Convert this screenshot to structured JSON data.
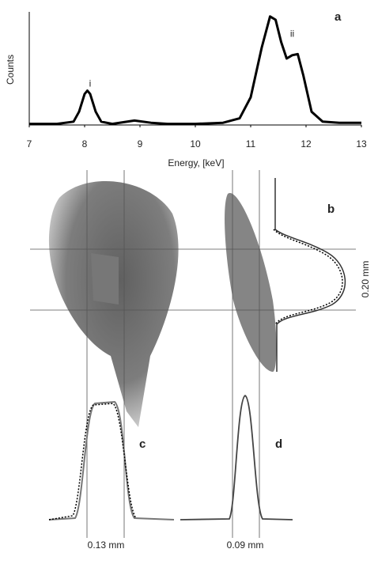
{
  "chart_data": {
    "type": "line",
    "ylabel": "Counts",
    "xlabel": "Energy, [keV]",
    "x": [
      7.0,
      7.5,
      7.8,
      7.9,
      8.0,
      8.05,
      8.1,
      8.2,
      8.3,
      8.5,
      8.9,
      9.2,
      9.5,
      10.0,
      10.5,
      10.8,
      11.0,
      11.2,
      11.35,
      11.45,
      11.55,
      11.65,
      11.75,
      11.85,
      11.95,
      12.1,
      12.3,
      12.6,
      13.0
    ],
    "series": [
      {
        "color": "#000000",
        "values": [
          1,
          1,
          3,
          12,
          28,
          31,
          28,
          12,
          3,
          1,
          4,
          2,
          1,
          1,
          2,
          6,
          25,
          70,
          98,
          95,
          75,
          60,
          63,
          64,
          45,
          12,
          3,
          2,
          2
        ]
      }
    ],
    "xlim": [
      7,
      13
    ],
    "ylim": [
      0,
      100
    ],
    "xticks": [
      7,
      8,
      9,
      10,
      11,
      12,
      13
    ],
    "annotations": [
      {
        "text": "i",
        "x": 8.1,
        "y": 37
      },
      {
        "text": "ii",
        "x": 11.75,
        "y": 82
      }
    ]
  },
  "figure": {
    "panel_labels": [
      "a",
      "b",
      "c",
      "d"
    ],
    "widths": [
      "0.20 mm",
      "0.13 mm",
      "0.09 mm"
    ]
  }
}
